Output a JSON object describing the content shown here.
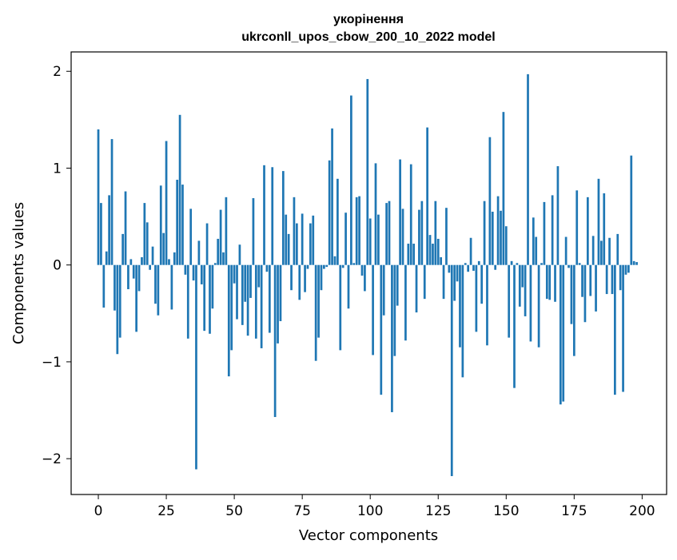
{
  "chart_data": {
    "type": "bar",
    "title": "укорінення",
    "subtitle": "ukrconll_upos_cbow_200_10_2022 model",
    "xlabel": "Vector components",
    "ylabel": "Components values",
    "xlim": [
      -10,
      209
    ],
    "ylim": [
      -2.37,
      2.2
    ],
    "xticks": [
      0,
      25,
      50,
      75,
      100,
      125,
      150,
      175,
      200
    ],
    "yticks": [
      -2,
      -1,
      0,
      1,
      2
    ],
    "ytick_labels": [
      "−2",
      "−1",
      "0",
      "1",
      "2"
    ],
    "grid": false,
    "bar_color": "#1f77b4",
    "values": [
      1.4,
      0.64,
      -0.44,
      0.14,
      0.72,
      1.3,
      -0.47,
      -0.92,
      -0.75,
      0.32,
      0.76,
      -0.25,
      0.06,
      -0.14,
      -0.69,
      -0.27,
      0.08,
      0.64,
      0.44,
      -0.05,
      0.19,
      -0.4,
      -0.52,
      0.82,
      0.33,
      1.28,
      0.06,
      -0.46,
      0.13,
      0.88,
      1.55,
      0.83,
      -0.1,
      -0.76,
      0.58,
      -0.16,
      -2.11,
      0.25,
      -0.2,
      -0.68,
      0.43,
      -0.71,
      -0.45,
      0.02,
      0.27,
      0.57,
      0.13,
      0.7,
      -1.15,
      -0.88,
      -0.19,
      -0.56,
      0.21,
      -0.62,
      -0.38,
      -0.73,
      -0.34,
      0.69,
      -0.76,
      -0.23,
      -0.86,
      1.03,
      -0.07,
      -0.7,
      1.01,
      -1.57,
      -0.81,
      -0.58,
      0.97,
      0.52,
      0.32,
      -0.26,
      0.7,
      0.43,
      -0.36,
      0.53,
      -0.28,
      -0.04,
      0.43,
      0.51,
      -0.99,
      -0.75,
      -0.26,
      -0.04,
      -0.02,
      1.08,
      1.41,
      0.09,
      0.89,
      -0.88,
      -0.03,
      0.54,
      -0.45,
      1.75,
      0.02,
      0.7,
      0.71,
      -0.11,
      -0.27,
      1.92,
      0.48,
      -0.93,
      1.05,
      0.52,
      -1.34,
      -0.52,
      0.64,
      0.66,
      -1.52,
      -0.94,
      -0.42,
      1.09,
      0.58,
      -0.78,
      0.22,
      1.04,
      0.22,
      -0.49,
      0.57,
      0.66,
      -0.35,
      1.42,
      0.31,
      0.22,
      0.66,
      0.27,
      0.08,
      -0.35,
      0.59,
      -0.08,
      -2.18,
      -0.37,
      -0.17,
      -0.85,
      -1.16,
      0.02,
      -0.07,
      0.28,
      -0.06,
      -0.69,
      0.04,
      -0.4,
      0.66,
      -0.83,
      1.32,
      0.55,
      -0.05,
      0.71,
      0.56,
      1.58,
      0.4,
      -0.75,
      0.04,
      -1.27,
      0.02,
      -0.43,
      -0.23,
      -0.53,
      1.97,
      -0.79,
      0.49,
      0.29,
      -0.85,
      0.02,
      0.65,
      -0.35,
      -0.36,
      0.72,
      -0.38,
      1.02,
      -1.44,
      -1.41,
      0.29,
      -0.03,
      -0.61,
      -0.94,
      0.77,
      0.02,
      -0.33,
      -0.59,
      0.7,
      -0.32,
      0.3,
      -0.48,
      0.89,
      0.25,
      0.74,
      -0.3,
      0.28,
      -0.3,
      -1.34,
      0.32,
      -0.26,
      -1.31,
      -0.1,
      -0.08,
      1.13,
      0.04,
      0.03
    ]
  }
}
